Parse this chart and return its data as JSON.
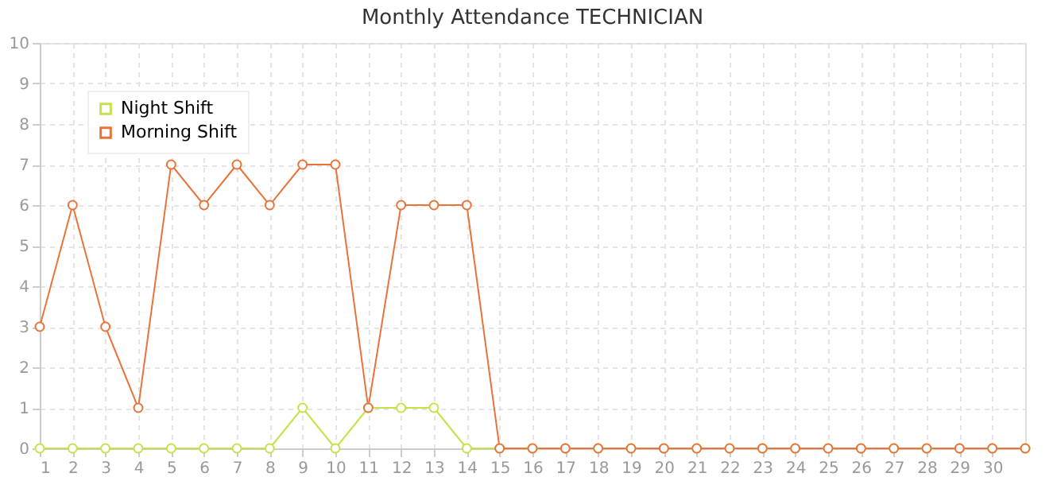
{
  "chart_data": {
    "type": "line",
    "title": "Monthly Attendance TECHNICIAN",
    "x": [
      1,
      2,
      3,
      4,
      5,
      6,
      7,
      8,
      9,
      10,
      11,
      12,
      13,
      14,
      15,
      16,
      17,
      18,
      19,
      20,
      21,
      22,
      23,
      24,
      25,
      26,
      27,
      28,
      29,
      30,
      31
    ],
    "series": [
      {
        "name": "Night Shift",
        "color": "#c8e04c",
        "values": [
          0,
          0,
          0,
          0,
          0,
          0,
          0,
          0,
          1,
          0,
          1,
          1,
          1,
          0,
          0,
          0,
          0,
          0,
          0,
          0,
          0,
          0,
          0,
          0,
          0,
          0,
          0,
          0,
          0,
          0,
          0
        ]
      },
      {
        "name": "Morning Shift",
        "color": "#e8743b",
        "values": [
          3,
          6,
          3,
          1,
          7,
          6,
          7,
          6,
          7,
          7,
          1,
          6,
          6,
          6,
          0,
          0,
          0,
          0,
          0,
          0,
          0,
          0,
          0,
          0,
          0,
          0,
          0,
          0,
          0,
          0,
          0
        ]
      }
    ],
    "xlim": [
      1,
      31
    ],
    "xticks": [
      1,
      2,
      3,
      4,
      5,
      6,
      7,
      8,
      9,
      10,
      11,
      12,
      13,
      14,
      15,
      16,
      17,
      18,
      19,
      20,
      21,
      22,
      23,
      24,
      25,
      26,
      27,
      28,
      29,
      30
    ],
    "ylim": [
      0,
      10
    ],
    "yticks": [
      0,
      1,
      2,
      3,
      4,
      5,
      6,
      7,
      8,
      9,
      10
    ],
    "grid": true,
    "legend": "top left",
    "marker": "circle",
    "line_style": "solid"
  }
}
